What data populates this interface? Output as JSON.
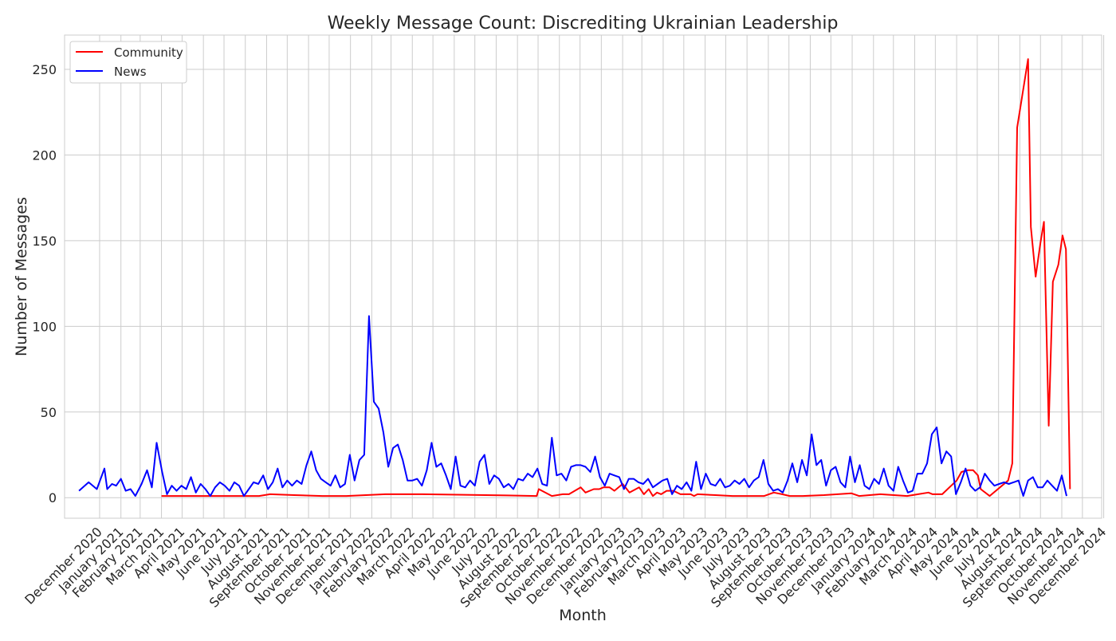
{
  "chart_data": {
    "type": "line",
    "title": "Weekly Message Count: Discrediting Ukrainian Leadership",
    "xlabel": "Month",
    "ylabel": "Number of Messages",
    "ylim": [
      -12,
      270
    ],
    "yticks": [
      0,
      50,
      100,
      150,
      200,
      250
    ],
    "grid": true,
    "legend_placement": "top-left",
    "x_month_ticks": [
      "December 2020",
      "January 2021",
      "February 2021",
      "March 2021",
      "April 2021",
      "May 2021",
      "June 2021",
      "July 2021",
      "August 2021",
      "September 2021",
      "October 2021",
      "November 2021",
      "December 2021",
      "January 2022",
      "February 2022",
      "March 2022",
      "April 2022",
      "May 2022",
      "June 2022",
      "July 2022",
      "August 2022",
      "September 2022",
      "October 2022",
      "November 2022",
      "December 2022",
      "January 2023",
      "February 2023",
      "March 2023",
      "April 2023",
      "May 2023",
      "June 2023",
      "July 2023",
      "August 2023",
      "September 2023",
      "October 2023",
      "November 2023",
      "December 2023",
      "January 2024",
      "February 2024",
      "March 2024",
      "April 2024",
      "May 2024",
      "June 2024",
      "July 2024",
      "August 2024",
      "September 2024",
      "October 2024",
      "November 2024",
      "December 2024"
    ],
    "series": [
      {
        "name": "Community",
        "color": "#ff0000",
        "points": [
          [
            "2021-03-31",
            1
          ],
          [
            "2021-05-01",
            1
          ],
          [
            "2021-07-01",
            1
          ],
          [
            "2021-08-20",
            1
          ],
          [
            "2021-09-05",
            2
          ],
          [
            "2021-10-10",
            1.5
          ],
          [
            "2021-11-20",
            1
          ],
          [
            "2021-12-25",
            1
          ],
          [
            "2022-02-20",
            2
          ],
          [
            "2022-04-15",
            2
          ],
          [
            "2022-06-15",
            1.7
          ],
          [
            "2022-08-15",
            1.3
          ],
          [
            "2022-09-28",
            1
          ],
          [
            "2022-10-01",
            5
          ],
          [
            "2022-10-20",
            1
          ],
          [
            "2022-11-05",
            2
          ],
          [
            "2022-11-14",
            2
          ],
          [
            "2022-12-01",
            6
          ],
          [
            "2022-12-08",
            3
          ],
          [
            "2022-12-20",
            5
          ],
          [
            "2022-12-28",
            5
          ],
          [
            "2023-01-03",
            6
          ],
          [
            "2023-01-12",
            6
          ],
          [
            "2023-01-19",
            4
          ],
          [
            "2023-01-31",
            8
          ],
          [
            "2023-02-10",
            3
          ],
          [
            "2023-02-24",
            6
          ],
          [
            "2023-03-03",
            2
          ],
          [
            "2023-03-10",
            5
          ],
          [
            "2023-03-16",
            1
          ],
          [
            "2023-03-22",
            3
          ],
          [
            "2023-03-28",
            2
          ],
          [
            "2023-04-05",
            4
          ],
          [
            "2023-04-15",
            4
          ],
          [
            "2023-04-25",
            2
          ],
          [
            "2023-05-10",
            2
          ],
          [
            "2023-05-15",
            1
          ],
          [
            "2023-05-20",
            2
          ],
          [
            "2023-06-15",
            1.5
          ],
          [
            "2023-07-10",
            1
          ],
          [
            "2023-08-10",
            1
          ],
          [
            "2023-08-25",
            1
          ],
          [
            "2023-09-08",
            3
          ],
          [
            "2023-09-20",
            2
          ],
          [
            "2023-10-01",
            1
          ],
          [
            "2023-10-20",
            1
          ],
          [
            "2023-11-20",
            1.5
          ],
          [
            "2023-12-30",
            2.5
          ],
          [
            "2024-01-10",
            1
          ],
          [
            "2024-02-10",
            2
          ],
          [
            "2024-03-20",
            1
          ],
          [
            "2024-04-05",
            2
          ],
          [
            "2024-04-20",
            3
          ],
          [
            "2024-04-26",
            2
          ],
          [
            "2024-05-10",
            2
          ],
          [
            "2024-05-31",
            10
          ],
          [
            "2024-06-07",
            15
          ],
          [
            "2024-06-16",
            16
          ],
          [
            "2024-06-24",
            16
          ],
          [
            "2024-07-01",
            13
          ],
          [
            "2024-07-05",
            5
          ],
          [
            "2024-07-18",
            1
          ],
          [
            "2024-08-14",
            10
          ],
          [
            "2024-08-20",
            20
          ],
          [
            "2024-08-27",
            216
          ],
          [
            "2024-09-12",
            256
          ],
          [
            "2024-09-16",
            158
          ],
          [
            "2024-09-23",
            129
          ],
          [
            "2024-09-30",
            149
          ],
          [
            "2024-10-05",
            161
          ],
          [
            "2024-10-12",
            42
          ],
          [
            "2024-10-18",
            126
          ],
          [
            "2024-10-26",
            136
          ],
          [
            "2024-11-01",
            153
          ],
          [
            "2024-11-06",
            145
          ],
          [
            "2024-11-12",
            5
          ]
        ]
      },
      {
        "name": "News",
        "color": "#0000ff",
        "points": [
          [
            "2020-12-01",
            4
          ],
          [
            "2020-12-15",
            9
          ],
          [
            "2020-12-27",
            5
          ],
          [
            "2021-01-07",
            17
          ],
          [
            "2021-01-11",
            5
          ],
          [
            "2021-01-18",
            8
          ],
          [
            "2021-01-24",
            7
          ],
          [
            "2021-01-31",
            11
          ],
          [
            "2021-02-07",
            4
          ],
          [
            "2021-02-14",
            5
          ],
          [
            "2021-02-21",
            1
          ],
          [
            "2021-03-02",
            8
          ],
          [
            "2021-03-10",
            16
          ],
          [
            "2021-03-17",
            6
          ],
          [
            "2021-03-24",
            32
          ],
          [
            "2021-04-01",
            15
          ],
          [
            "2021-04-08",
            2
          ],
          [
            "2021-04-15",
            7
          ],
          [
            "2021-04-22",
            4
          ],
          [
            "2021-04-29",
            7
          ],
          [
            "2021-05-06",
            5
          ],
          [
            "2021-05-13",
            12
          ],
          [
            "2021-05-20",
            3
          ],
          [
            "2021-05-27",
            8
          ],
          [
            "2021-06-03",
            5
          ],
          [
            "2021-06-10",
            1
          ],
          [
            "2021-06-17",
            6
          ],
          [
            "2021-06-24",
            9
          ],
          [
            "2021-07-01",
            7
          ],
          [
            "2021-07-08",
            4
          ],
          [
            "2021-07-15",
            9
          ],
          [
            "2021-07-22",
            7
          ],
          [
            "2021-07-29",
            1
          ],
          [
            "2021-08-05",
            5
          ],
          [
            "2021-08-12",
            9
          ],
          [
            "2021-08-19",
            8
          ],
          [
            "2021-08-26",
            13
          ],
          [
            "2021-09-02",
            5
          ],
          [
            "2021-09-09",
            9
          ],
          [
            "2021-09-16",
            17
          ],
          [
            "2021-09-23",
            6
          ],
          [
            "2021-09-30",
            10
          ],
          [
            "2021-10-07",
            7
          ],
          [
            "2021-10-14",
            10
          ],
          [
            "2021-10-21",
            8
          ],
          [
            "2021-10-28",
            19
          ],
          [
            "2021-11-04",
            27
          ],
          [
            "2021-11-11",
            16
          ],
          [
            "2021-11-18",
            11
          ],
          [
            "2021-11-25",
            9
          ],
          [
            "2021-12-02",
            7
          ],
          [
            "2021-12-09",
            13
          ],
          [
            "2021-12-16",
            6
          ],
          [
            "2021-12-23",
            8
          ],
          [
            "2021-12-30",
            25
          ],
          [
            "2022-01-06",
            10
          ],
          [
            "2022-01-13",
            22
          ],
          [
            "2022-01-20",
            25
          ],
          [
            "2022-01-27",
            106
          ],
          [
            "2022-02-03",
            56
          ],
          [
            "2022-02-10",
            52
          ],
          [
            "2022-02-17",
            38
          ],
          [
            "2022-02-24",
            18
          ],
          [
            "2022-03-03",
            29
          ],
          [
            "2022-03-10",
            31
          ],
          [
            "2022-03-17",
            22
          ],
          [
            "2022-03-24",
            10
          ],
          [
            "2022-03-31",
            10
          ],
          [
            "2022-04-07",
            11
          ],
          [
            "2022-04-14",
            7
          ],
          [
            "2022-04-21",
            16
          ],
          [
            "2022-04-28",
            32
          ],
          [
            "2022-05-05",
            18
          ],
          [
            "2022-05-12",
            20
          ],
          [
            "2022-05-19",
            13
          ],
          [
            "2022-05-26",
            5
          ],
          [
            "2022-06-02",
            24
          ],
          [
            "2022-06-09",
            7
          ],
          [
            "2022-06-16",
            6
          ],
          [
            "2022-06-23",
            10
          ],
          [
            "2022-06-30",
            7
          ],
          [
            "2022-07-07",
            21
          ],
          [
            "2022-07-14",
            25
          ],
          [
            "2022-07-21",
            8
          ],
          [
            "2022-07-28",
            13
          ],
          [
            "2022-08-04",
            11
          ],
          [
            "2022-08-11",
            6
          ],
          [
            "2022-08-18",
            8
          ],
          [
            "2022-08-25",
            5
          ],
          [
            "2022-09-01",
            11
          ],
          [
            "2022-09-08",
            10
          ],
          [
            "2022-09-15",
            14
          ],
          [
            "2022-09-22",
            12
          ],
          [
            "2022-09-29",
            17
          ],
          [
            "2022-10-06",
            8
          ],
          [
            "2022-10-13",
            7
          ],
          [
            "2022-10-20",
            35
          ],
          [
            "2022-10-27",
            13
          ],
          [
            "2022-11-03",
            14
          ],
          [
            "2022-11-10",
            10
          ],
          [
            "2022-11-17",
            18
          ],
          [
            "2022-11-24",
            19
          ],
          [
            "2022-12-01",
            19
          ],
          [
            "2022-12-08",
            18
          ],
          [
            "2022-12-15",
            15
          ],
          [
            "2022-12-22",
            24
          ],
          [
            "2022-12-29",
            12
          ],
          [
            "2023-01-05",
            7
          ],
          [
            "2023-01-12",
            14
          ],
          [
            "2023-01-19",
            13
          ],
          [
            "2023-01-26",
            12
          ],
          [
            "2023-02-02",
            5
          ],
          [
            "2023-02-09",
            11
          ],
          [
            "2023-02-16",
            11
          ],
          [
            "2023-02-23",
            9
          ],
          [
            "2023-03-02",
            8
          ],
          [
            "2023-03-09",
            11
          ],
          [
            "2023-03-16",
            6
          ],
          [
            "2023-03-23",
            8
          ],
          [
            "2023-03-30",
            10
          ],
          [
            "2023-04-06",
            11
          ],
          [
            "2023-04-13",
            2
          ],
          [
            "2023-04-20",
            7
          ],
          [
            "2023-04-27",
            5
          ],
          [
            "2023-05-04",
            9
          ],
          [
            "2023-05-11",
            4
          ],
          [
            "2023-05-18",
            21
          ],
          [
            "2023-05-25",
            5
          ],
          [
            "2023-06-01",
            14
          ],
          [
            "2023-06-08",
            8
          ],
          [
            "2023-06-15",
            7
          ],
          [
            "2023-06-22",
            11
          ],
          [
            "2023-06-29",
            6
          ],
          [
            "2023-07-06",
            7
          ],
          [
            "2023-07-13",
            10
          ],
          [
            "2023-07-20",
            8
          ],
          [
            "2023-07-27",
            11
          ],
          [
            "2023-08-03",
            6
          ],
          [
            "2023-08-10",
            10
          ],
          [
            "2023-08-17",
            12
          ],
          [
            "2023-08-24",
            22
          ],
          [
            "2023-08-31",
            8
          ],
          [
            "2023-09-07",
            4
          ],
          [
            "2023-09-14",
            5
          ],
          [
            "2023-09-21",
            3
          ],
          [
            "2023-09-28",
            10
          ],
          [
            "2023-10-05",
            20
          ],
          [
            "2023-10-12",
            9
          ],
          [
            "2023-10-19",
            22
          ],
          [
            "2023-10-26",
            13
          ],
          [
            "2023-11-02",
            37
          ],
          [
            "2023-11-09",
            19
          ],
          [
            "2023-11-16",
            22
          ],
          [
            "2023-11-23",
            7
          ],
          [
            "2023-11-30",
            16
          ],
          [
            "2023-12-07",
            18
          ],
          [
            "2023-12-14",
            9
          ],
          [
            "2023-12-21",
            6
          ],
          [
            "2023-12-28",
            24
          ],
          [
            "2024-01-04",
            9
          ],
          [
            "2024-01-11",
            19
          ],
          [
            "2024-01-18",
            7
          ],
          [
            "2024-01-25",
            5
          ],
          [
            "2024-02-01",
            11
          ],
          [
            "2024-02-08",
            8
          ],
          [
            "2024-02-15",
            17
          ],
          [
            "2024-02-22",
            7
          ],
          [
            "2024-02-29",
            4
          ],
          [
            "2024-03-07",
            18
          ],
          [
            "2024-03-14",
            10
          ],
          [
            "2024-03-21",
            3
          ],
          [
            "2024-03-28",
            4
          ],
          [
            "2024-04-04",
            14
          ],
          [
            "2024-04-11",
            14
          ],
          [
            "2024-04-18",
            20
          ],
          [
            "2024-04-25",
            37
          ],
          [
            "2024-05-02",
            41
          ],
          [
            "2024-05-09",
            20
          ],
          [
            "2024-05-16",
            27
          ],
          [
            "2024-05-23",
            24
          ],
          [
            "2024-05-30",
            2
          ],
          [
            "2024-06-06",
            9
          ],
          [
            "2024-06-13",
            17
          ],
          [
            "2024-06-20",
            7
          ],
          [
            "2024-06-27",
            4
          ],
          [
            "2024-07-04",
            6
          ],
          [
            "2024-07-11",
            14
          ],
          [
            "2024-07-18",
            10
          ],
          [
            "2024-07-25",
            7
          ],
          [
            "2024-08-01",
            8
          ],
          [
            "2024-08-08",
            9
          ],
          [
            "2024-08-15",
            8
          ],
          [
            "2024-08-22",
            9
          ],
          [
            "2024-08-29",
            10
          ],
          [
            "2024-09-05",
            1
          ],
          [
            "2024-09-12",
            10
          ],
          [
            "2024-09-19",
            12
          ],
          [
            "2024-09-26",
            6
          ],
          [
            "2024-10-03",
            6
          ],
          [
            "2024-10-10",
            10
          ],
          [
            "2024-10-17",
            7
          ],
          [
            "2024-10-24",
            4
          ],
          [
            "2024-10-31",
            13
          ],
          [
            "2024-11-07",
            1
          ]
        ]
      }
    ]
  }
}
